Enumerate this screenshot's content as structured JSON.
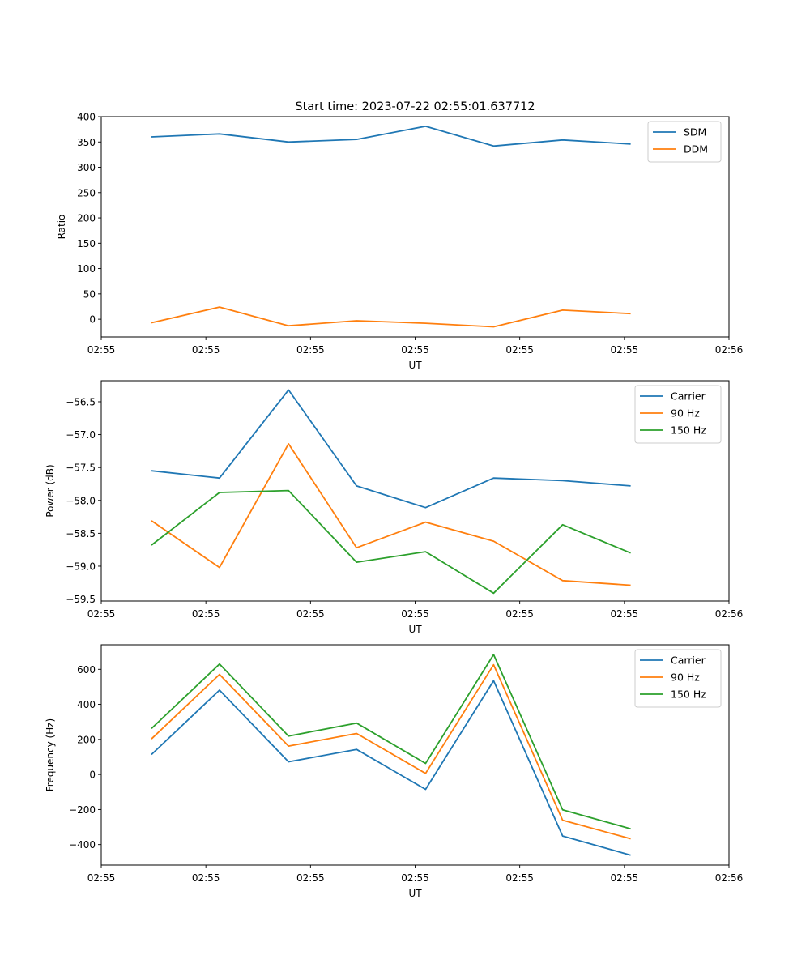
{
  "chart_data": [
    {
      "type": "line",
      "title": "Start time: 2023-07-22 02:55:01.637712",
      "xlabel": "UT",
      "ylabel": "Ratio",
      "x_ticks": [
        0,
        10,
        20,
        30,
        40,
        50,
        60
      ],
      "x_tick_labels": [
        "02:55",
        "02:55",
        "02:55",
        "02:55",
        "02:55",
        "02:55",
        "02:56"
      ],
      "xlim": [
        0,
        60
      ],
      "x": [
        4.8,
        11.3,
        17.9,
        24.4,
        31.0,
        37.5,
        44.1,
        50.6
      ],
      "y_ticks": [
        0,
        50,
        100,
        150,
        200,
        250,
        300,
        350,
        400
      ],
      "y_tick_labels": [
        "0",
        "50",
        "100",
        "150",
        "200",
        "250",
        "300",
        "350",
        "400"
      ],
      "ylim": [
        -35,
        400
      ],
      "legend": "top-right",
      "series": [
        {
          "name": "SDM",
          "color": "#1f77b4",
          "values": [
            360,
            366,
            350,
            355,
            381,
            342,
            354,
            346
          ]
        },
        {
          "name": "DDM",
          "color": "#ff7f0e",
          "values": [
            -7,
            24,
            -13,
            -3,
            -8,
            -15,
            18,
            11
          ]
        }
      ]
    },
    {
      "type": "line",
      "title": "",
      "xlabel": "UT",
      "ylabel": "Power (dB)",
      "x_ticks": [
        0,
        10,
        20,
        30,
        40,
        50,
        60
      ],
      "x_tick_labels": [
        "02:55",
        "02:55",
        "02:55",
        "02:55",
        "02:55",
        "02:55",
        "02:56"
      ],
      "xlim": [
        0,
        60
      ],
      "x": [
        4.8,
        11.3,
        17.9,
        24.4,
        31.0,
        37.5,
        44.1,
        50.6
      ],
      "y_ticks": [
        -59.5,
        -59.0,
        -58.5,
        -58.0,
        -57.5,
        -57.0,
        -56.5
      ],
      "y_tick_labels": [
        "−59.5",
        "−59.0",
        "−58.5",
        "−58.0",
        "−57.5",
        "−57.0",
        "−56.5"
      ],
      "ylim": [
        -59.53,
        -56.18
      ],
      "legend": "top-right",
      "series": [
        {
          "name": "Carrier",
          "color": "#1f77b4",
          "values": [
            -57.55,
            -57.66,
            -56.32,
            -57.78,
            -58.11,
            -57.66,
            -57.7,
            -57.78
          ]
        },
        {
          "name": "90 Hz",
          "color": "#ff7f0e",
          "values": [
            -58.31,
            -59.02,
            -57.14,
            -58.72,
            -58.33,
            -58.62,
            -59.22,
            -59.29
          ]
        },
        {
          "name": "150 Hz",
          "color": "#2ca02c",
          "values": [
            -58.68,
            -57.88,
            -57.85,
            -58.94,
            -58.78,
            -59.41,
            -58.37,
            -58.8
          ]
        }
      ]
    },
    {
      "type": "line",
      "title": "",
      "xlabel": "UT",
      "ylabel": "Frequency (Hz)",
      "x_ticks": [
        0,
        10,
        20,
        30,
        40,
        50,
        60
      ],
      "x_tick_labels": [
        "02:55",
        "02:55",
        "02:55",
        "02:55",
        "02:55",
        "02:55",
        "02:56"
      ],
      "xlim": [
        0,
        60
      ],
      "x": [
        4.8,
        11.3,
        17.9,
        24.4,
        31.0,
        37.5,
        44.1,
        50.6
      ],
      "y_ticks": [
        -400,
        -200,
        0,
        200,
        400,
        600
      ],
      "y_tick_labels": [
        "−400",
        "−200",
        "0",
        "200",
        "400",
        "600"
      ],
      "ylim": [
        -517,
        740
      ],
      "legend": "top-right",
      "series": [
        {
          "name": "Carrier",
          "color": "#1f77b4",
          "values": [
            114,
            481,
            72,
            143,
            -85,
            535,
            -351,
            -460
          ]
        },
        {
          "name": "90 Hz",
          "color": "#ff7f0e",
          "values": [
            203,
            571,
            162,
            234,
            6,
            626,
            -261,
            -367
          ]
        },
        {
          "name": "150 Hz",
          "color": "#2ca02c",
          "values": [
            262,
            630,
            219,
            293,
            63,
            684,
            -202,
            -310
          ]
        }
      ]
    }
  ]
}
